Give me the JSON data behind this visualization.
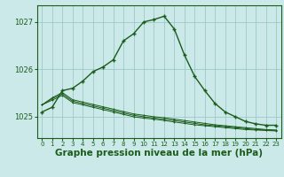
{
  "background_color": "#cce9e9",
  "plot_bg_color": "#cce9e9",
  "grid_color": "#9ec8c8",
  "line_color": "#1a5c1a",
  "marker_color": "#1a5c1a",
  "xlabel": "Graphe pression niveau de la mer (hPa)",
  "xlim": [
    -0.5,
    23.5
  ],
  "ylim": [
    1024.55,
    1027.35
  ],
  "yticks": [
    1025,
    1026,
    1027
  ],
  "xticks": [
    0,
    1,
    2,
    3,
    4,
    5,
    6,
    7,
    8,
    9,
    10,
    11,
    12,
    13,
    14,
    15,
    16,
    17,
    18,
    19,
    20,
    21,
    22,
    23
  ],
  "series_main": [
    1025.1,
    1025.2,
    1025.55,
    1025.6,
    1025.75,
    1025.95,
    1026.05,
    1026.2,
    1026.6,
    1026.75,
    1027.0,
    1027.05,
    1027.12,
    1026.85,
    1026.3,
    1025.85,
    1025.55,
    1025.28,
    1025.1,
    1025.0,
    1024.9,
    1024.85,
    1024.82,
    1024.82
  ],
  "series_flat": [
    [
      1025.25,
      1025.35,
      1025.45,
      1025.3,
      1025.25,
      1025.2,
      1025.15,
      1025.1,
      1025.05,
      1025.0,
      1024.97,
      1024.95,
      1024.92,
      1024.89,
      1024.86,
      1024.83,
      1024.81,
      1024.79,
      1024.77,
      1024.75,
      1024.73,
      1024.72,
      1024.71,
      1024.7
    ],
    [
      1025.25,
      1025.38,
      1025.48,
      1025.33,
      1025.28,
      1025.23,
      1025.18,
      1025.13,
      1025.08,
      1025.03,
      1025.0,
      1024.97,
      1024.95,
      1024.92,
      1024.89,
      1024.86,
      1024.83,
      1024.81,
      1024.79,
      1024.77,
      1024.75,
      1024.73,
      1024.72,
      1024.71
    ],
    [
      1025.25,
      1025.4,
      1025.51,
      1025.36,
      1025.31,
      1025.26,
      1025.21,
      1025.16,
      1025.11,
      1025.06,
      1025.03,
      1025.0,
      1024.98,
      1024.95,
      1024.92,
      1024.89,
      1024.86,
      1024.83,
      1024.81,
      1024.79,
      1024.77,
      1024.75,
      1024.73,
      1024.72
    ]
  ],
  "marker_size": 3.0,
  "line_width": 1.0,
  "title_fontsize": 7.5,
  "tick_fontsize": 6.0
}
